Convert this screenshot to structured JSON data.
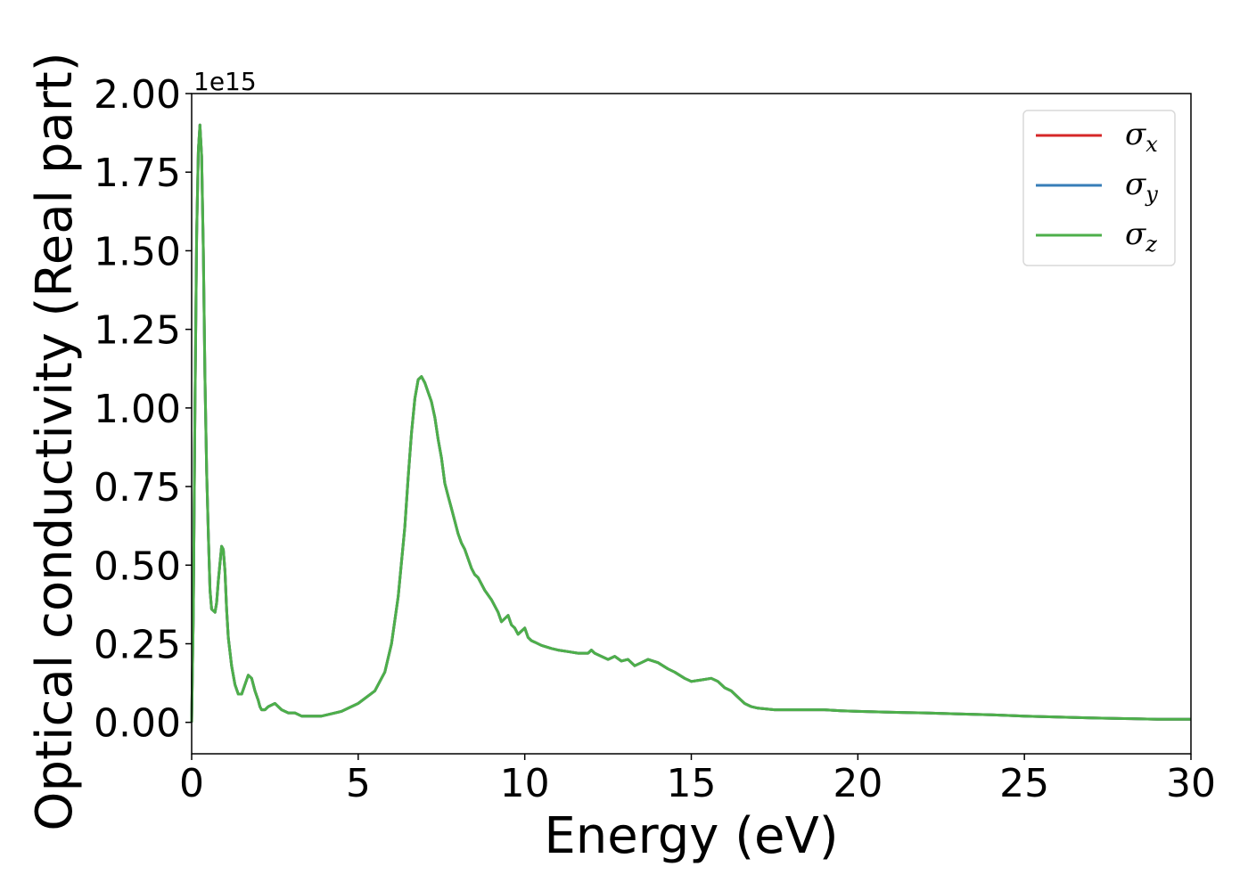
{
  "chart_data": {
    "type": "line",
    "xlabel": "Energy (eV)",
    "ylabel": "Optical conductivity (Real part)",
    "y_offset_label": "1e15",
    "xlim": [
      0,
      30
    ],
    "ylim": [
      -0.1,
      2.0
    ],
    "xticks": [
      "0",
      "5",
      "10",
      "15",
      "20",
      "25",
      "30"
    ],
    "yticks": [
      "0.00",
      "0.25",
      "0.50",
      "0.75",
      "1.00",
      "1.25",
      "1.50",
      "1.75",
      "2.00"
    ],
    "legend_position": "top-right",
    "grid": false,
    "series": [
      {
        "name": "σ",
        "subscript": "x",
        "color": "#d62728"
      },
      {
        "name": "σ",
        "subscript": "y",
        "color": "#377eb8"
      },
      {
        "name": "σ",
        "subscript": "z",
        "color": "#4daf4a"
      }
    ],
    "x": [
      0.0,
      0.05,
      0.1,
      0.15,
      0.2,
      0.25,
      0.3,
      0.35,
      0.4,
      0.45,
      0.5,
      0.55,
      0.6,
      0.7,
      0.75,
      0.8,
      0.9,
      0.95,
      1.0,
      1.05,
      1.1,
      1.2,
      1.3,
      1.4,
      1.5,
      1.6,
      1.7,
      1.8,
      1.9,
      2.0,
      2.05,
      2.1,
      2.2,
      2.3,
      2.5,
      2.7,
      2.9,
      3.0,
      3.1,
      3.3,
      3.5,
      3.8,
      3.9,
      4.1,
      4.5,
      5.0,
      5.5,
      5.8,
      6.0,
      6.2,
      6.4,
      6.5,
      6.6,
      6.7,
      6.8,
      6.9,
      7.0,
      7.1,
      7.2,
      7.3,
      7.4,
      7.5,
      7.6,
      7.7,
      7.8,
      7.9,
      8.0,
      8.1,
      8.2,
      8.4,
      8.5,
      8.6,
      8.8,
      9.0,
      9.2,
      9.3,
      9.5,
      9.6,
      9.7,
      9.8,
      9.9,
      10.0,
      10.1,
      10.2,
      10.3,
      10.5,
      10.8,
      11.0,
      11.3,
      11.6,
      11.9,
      12.0,
      12.1,
      12.3,
      12.5,
      12.7,
      12.9,
      13.1,
      13.3,
      13.5,
      13.7,
      14.0,
      14.3,
      14.5,
      14.8,
      15.0,
      15.3,
      15.6,
      15.8,
      16.0,
      16.2,
      16.4,
      16.6,
      16.8,
      17.0,
      17.5,
      18.0,
      18.5,
      19.0,
      19.5,
      20.0,
      21.0,
      22.0,
      23.0,
      24.0,
      25.0,
      26.0,
      27.0,
      28.0,
      29.0,
      30.0
    ],
    "y": [
      0.0,
      0.35,
      1.0,
      1.55,
      1.82,
      1.9,
      1.8,
      1.5,
      1.1,
      0.8,
      0.6,
      0.42,
      0.36,
      0.35,
      0.38,
      0.45,
      0.56,
      0.55,
      0.48,
      0.36,
      0.27,
      0.18,
      0.12,
      0.09,
      0.09,
      0.12,
      0.15,
      0.14,
      0.1,
      0.07,
      0.05,
      0.04,
      0.04,
      0.05,
      0.06,
      0.04,
      0.03,
      0.03,
      0.03,
      0.02,
      0.02,
      0.02,
      0.02,
      0.025,
      0.035,
      0.06,
      0.1,
      0.16,
      0.25,
      0.4,
      0.62,
      0.78,
      0.92,
      1.03,
      1.09,
      1.1,
      1.08,
      1.05,
      1.02,
      0.97,
      0.9,
      0.84,
      0.76,
      0.72,
      0.68,
      0.64,
      0.6,
      0.57,
      0.55,
      0.49,
      0.47,
      0.46,
      0.42,
      0.39,
      0.35,
      0.32,
      0.34,
      0.31,
      0.3,
      0.28,
      0.29,
      0.3,
      0.27,
      0.26,
      0.255,
      0.245,
      0.235,
      0.23,
      0.225,
      0.22,
      0.22,
      0.23,
      0.22,
      0.21,
      0.2,
      0.21,
      0.195,
      0.2,
      0.18,
      0.19,
      0.2,
      0.19,
      0.17,
      0.16,
      0.14,
      0.13,
      0.135,
      0.14,
      0.13,
      0.11,
      0.1,
      0.08,
      0.06,
      0.05,
      0.045,
      0.04,
      0.04,
      0.04,
      0.04,
      0.037,
      0.035,
      0.032,
      0.03,
      0.027,
      0.024,
      0.02,
      0.017,
      0.014,
      0.012,
      0.01,
      0.01
    ]
  }
}
